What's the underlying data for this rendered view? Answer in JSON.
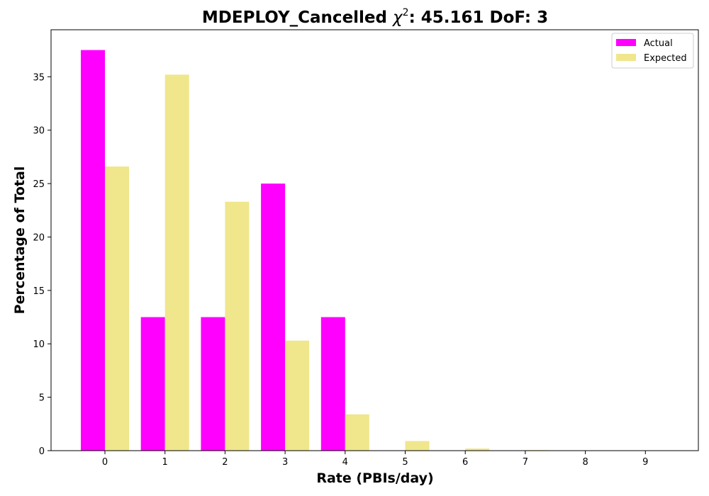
{
  "chart_data": {
    "type": "bar",
    "title_main": "MDEPLOY_Cancelled ",
    "title_chi": "χ",
    "title_sup": "2",
    "title_rest": ": 45.161 DoF: 3",
    "xlabel": "Rate (PBIs/day)",
    "ylabel": "Percentage of Total",
    "categories": [
      "0",
      "1",
      "2",
      "3",
      "4",
      "5",
      "6",
      "7",
      "8",
      "9"
    ],
    "yticks": [
      "0",
      "5",
      "10",
      "15",
      "20",
      "25",
      "30",
      "35"
    ],
    "ylim": [
      0,
      39.4
    ],
    "series": [
      {
        "name": "Actual",
        "color": "#ff00ff",
        "values": [
          37.5,
          12.5,
          12.5,
          25.0,
          12.5,
          0,
          0,
          0,
          0,
          0
        ]
      },
      {
        "name": "Expected",
        "color": "#f0e68c",
        "values": [
          26.6,
          35.2,
          23.3,
          10.3,
          3.4,
          0.9,
          0.2,
          0.05,
          0.01,
          0.0
        ]
      }
    ],
    "legend_position": "top-right",
    "grid": false
  }
}
